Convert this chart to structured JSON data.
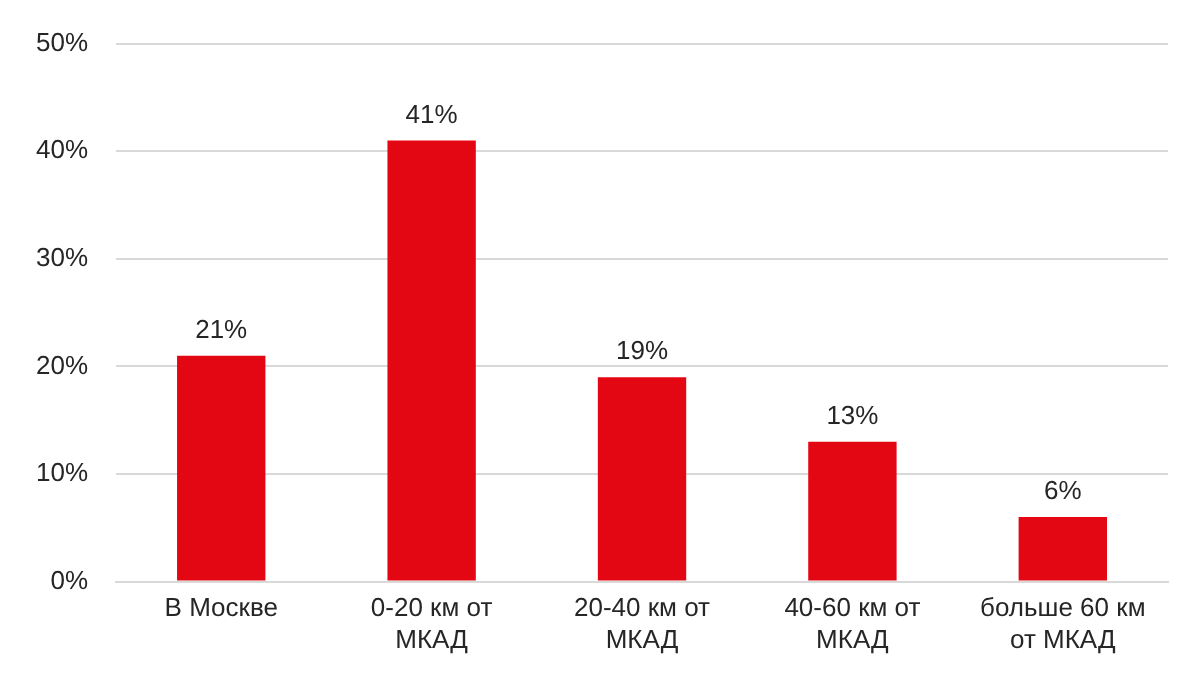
{
  "chart_data": {
    "type": "bar",
    "categories": [
      "В Москве",
      "0-20 км от МКАД",
      "20-40 км от МКАД",
      "40-60 км от МКАД",
      "больше 60 км от МКАД"
    ],
    "values": [
      21,
      41,
      19,
      13,
      6
    ],
    "value_labels": [
      "21%",
      "41%",
      "19%",
      "13%",
      "6%"
    ],
    "color": "#e30613",
    "ylim": [
      0,
      50
    ],
    "yticks": [
      {
        "value": 0,
        "label": "0%"
      },
      {
        "value": 10,
        "label": "10%"
      },
      {
        "value": 20,
        "label": "20%"
      },
      {
        "value": 30,
        "label": "30%"
      },
      {
        "value": 40,
        "label": "40%"
      },
      {
        "value": 50,
        "label": "50%"
      }
    ],
    "grid": "y"
  }
}
